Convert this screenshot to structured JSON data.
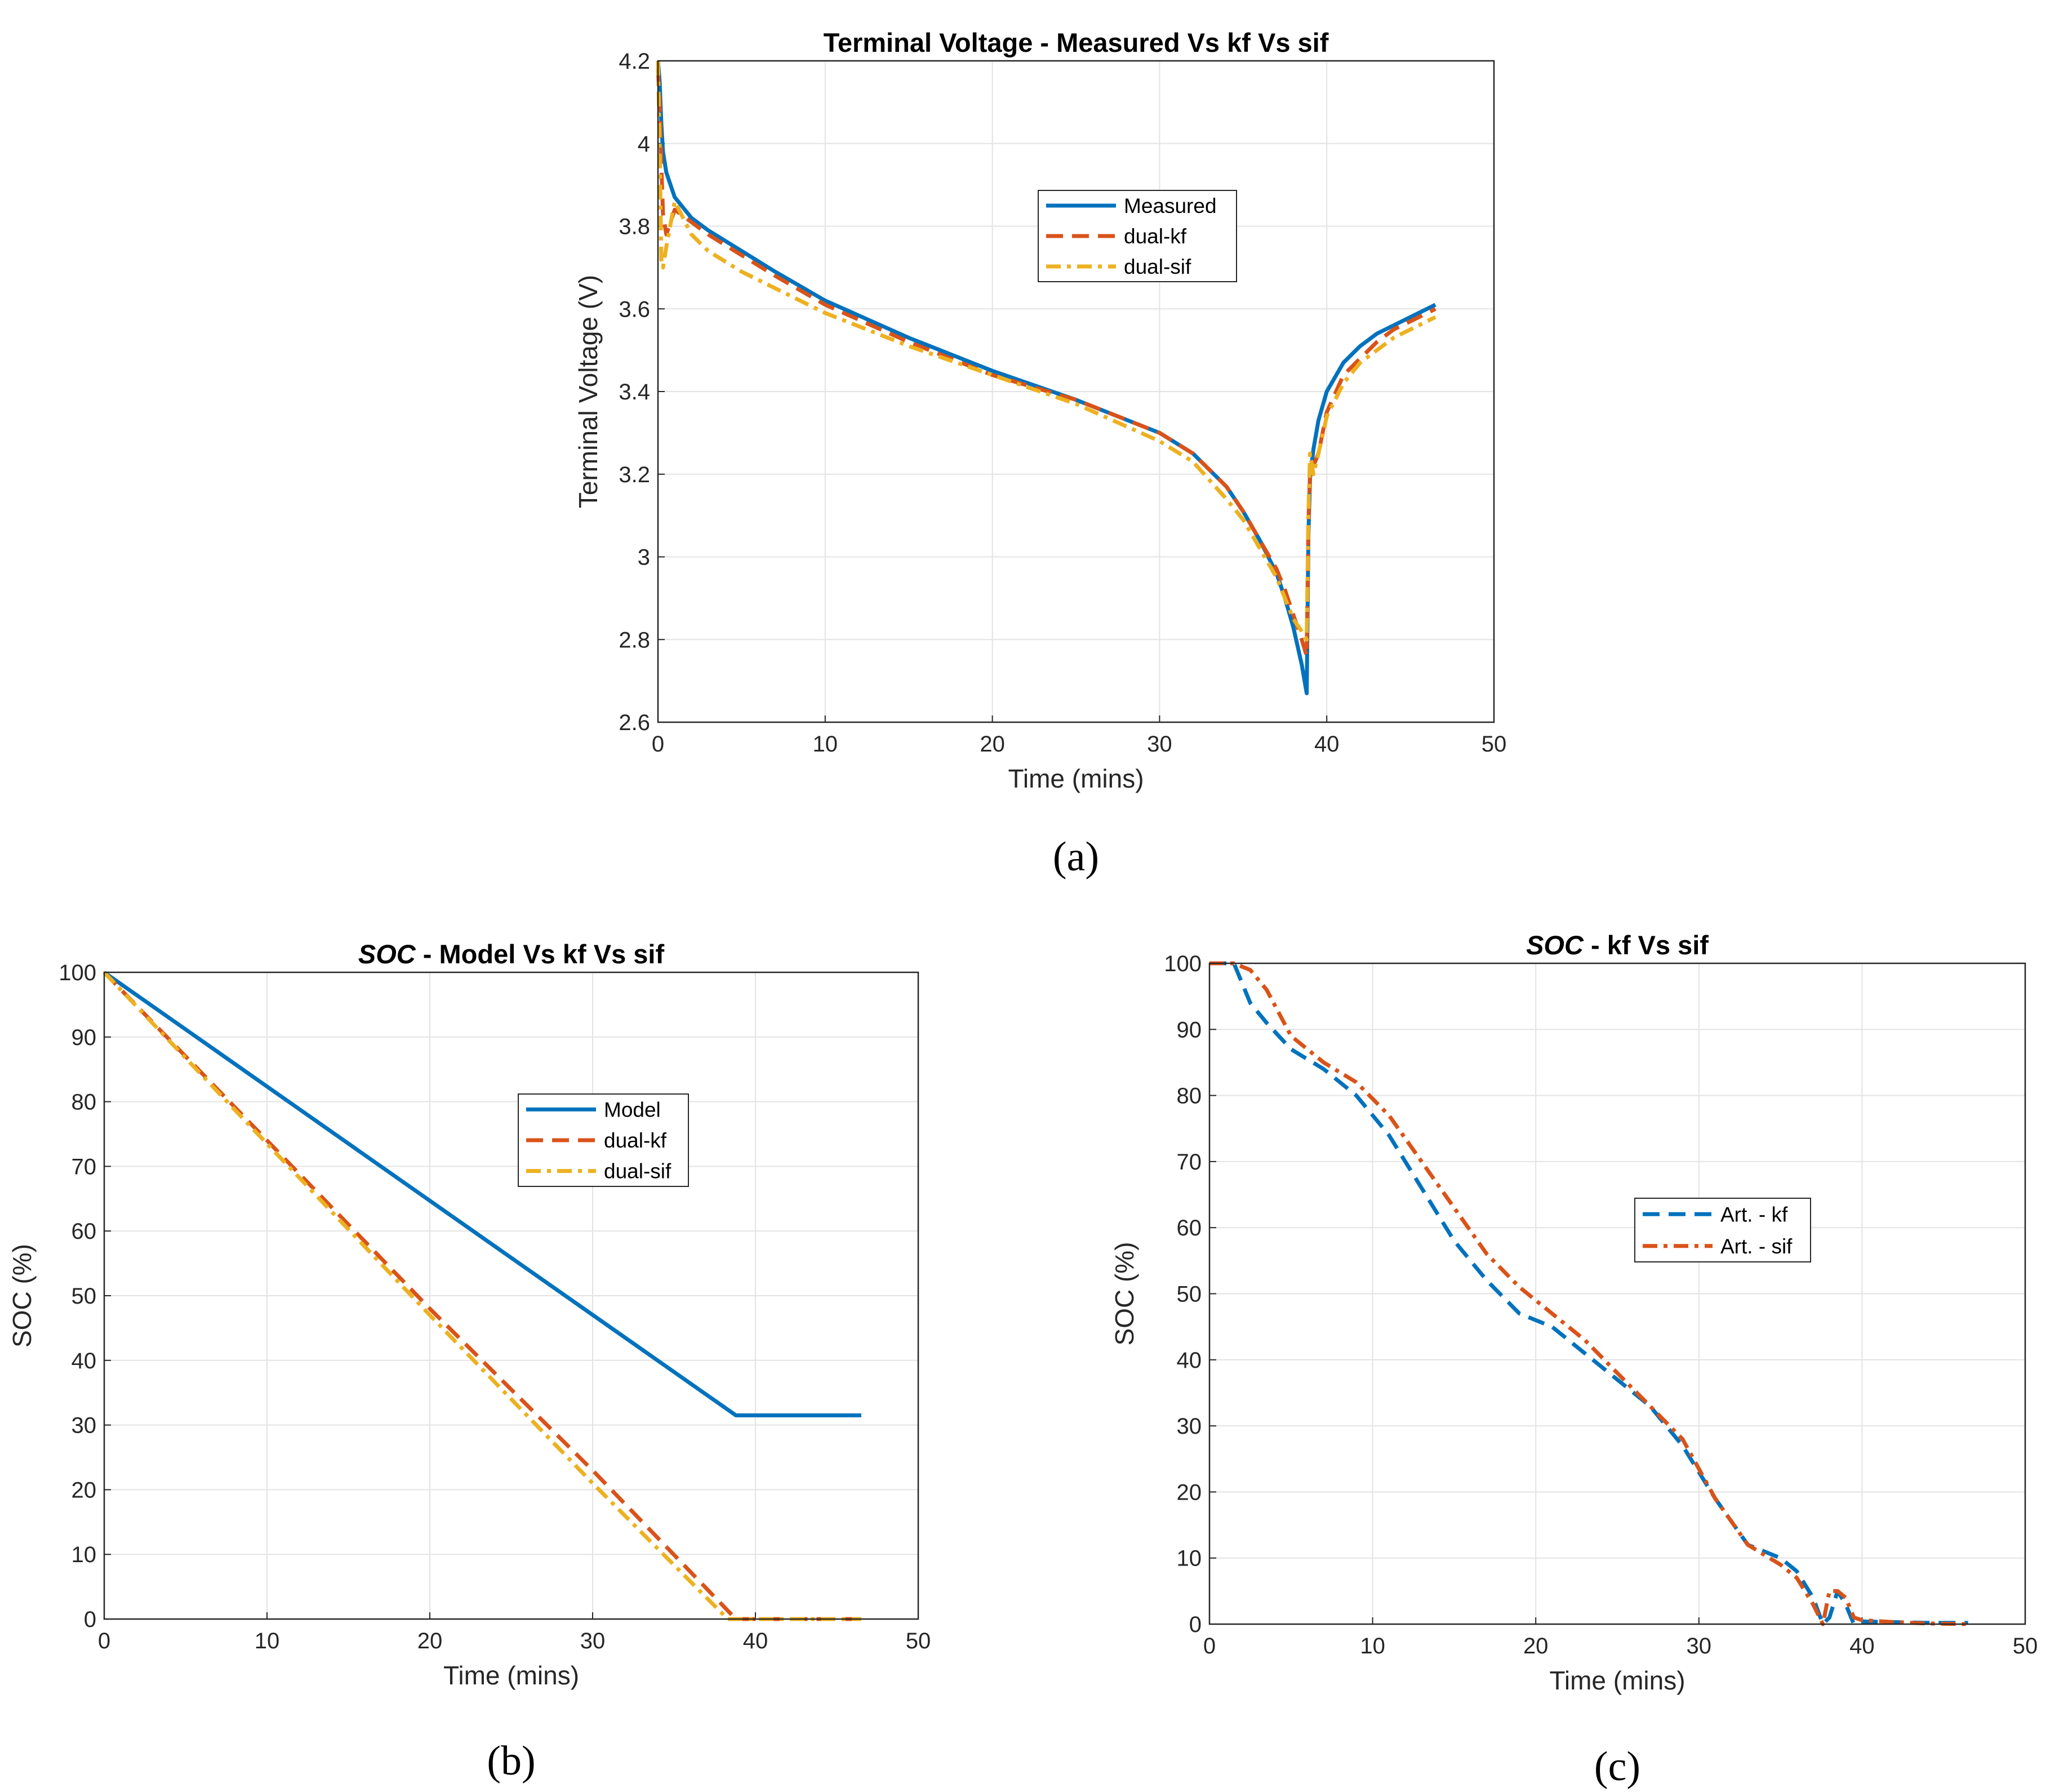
{
  "colors": {
    "blue": "#0072BD",
    "red": "#D95319",
    "yellow": "#EDB120"
  },
  "chart_data": [
    {
      "id": "a",
      "type": "line",
      "title": "Terminal Voltage - Measured Vs kf Vs sif",
      "title_italic_prefix": "",
      "xlabel": "Time (mins)",
      "ylabel": "Terminal Voltage (V)",
      "panel_label": "(a)",
      "xlim": [
        0,
        50
      ],
      "ylim": [
        2.6,
        4.2
      ],
      "xticks": [
        0,
        10,
        20,
        30,
        40,
        50
      ],
      "yticks": [
        2.6,
        2.8,
        3,
        3.2,
        3.4,
        3.6,
        3.8,
        4,
        4.2
      ],
      "ytick_labels": [
        "2.6",
        "2.8",
        "3",
        "3.2",
        "3.4",
        "3.6",
        "3.8",
        "4",
        "4.2"
      ],
      "grid": true,
      "legend_position": "upper-middle",
      "series": [
        {
          "name": "Measured",
          "color": "blue",
          "style": "solid",
          "x": [
            0,
            0.1,
            0.2,
            0.3,
            0.5,
            1,
            2,
            3,
            5,
            7,
            10,
            15,
            20,
            25,
            30,
            32,
            34,
            35,
            36,
            37,
            37.5,
            38,
            38.5,
            38.8,
            38.9,
            39.0,
            39.2,
            39.5,
            40,
            41,
            42,
            43,
            44,
            45,
            46.5
          ],
          "y": [
            4.2,
            4.15,
            4.05,
            3.98,
            3.93,
            3.87,
            3.82,
            3.79,
            3.74,
            3.69,
            3.62,
            3.53,
            3.45,
            3.38,
            3.3,
            3.25,
            3.17,
            3.11,
            3.04,
            2.96,
            2.9,
            2.83,
            2.74,
            2.67,
            3.05,
            3.19,
            3.26,
            3.33,
            3.4,
            3.47,
            3.51,
            3.54,
            3.56,
            3.58,
            3.61
          ]
        },
        {
          "name": "dual-kf",
          "color": "red",
          "style": "dashed",
          "x": [
            0,
            0.1,
            0.2,
            0.3,
            0.5,
            1,
            2,
            3,
            5,
            7,
            10,
            15,
            20,
            25,
            30,
            32,
            34,
            35,
            36,
            37,
            37.5,
            38,
            38.5,
            38.8,
            38.9,
            39.0,
            39.2,
            39.5,
            40,
            41,
            42,
            43,
            44,
            45,
            46.5
          ],
          "y": [
            4.18,
            4.1,
            3.95,
            3.83,
            3.78,
            3.84,
            3.81,
            3.78,
            3.73,
            3.68,
            3.61,
            3.52,
            3.44,
            3.38,
            3.3,
            3.25,
            3.17,
            3.11,
            3.04,
            2.97,
            2.92,
            2.86,
            2.8,
            2.76,
            3.08,
            3.2,
            3.22,
            3.25,
            3.35,
            3.44,
            3.48,
            3.52,
            3.55,
            3.57,
            3.6
          ]
        },
        {
          "name": "dual-sif",
          "color": "yellow",
          "style": "dashdot",
          "x": [
            0,
            0.1,
            0.2,
            0.3,
            0.5,
            1,
            2,
            3,
            5,
            7,
            10,
            15,
            20,
            25,
            30,
            32,
            34,
            35,
            36,
            37,
            37.5,
            38,
            38.5,
            38.8,
            38.9,
            39.0,
            39.2,
            39.5,
            40,
            41,
            42,
            43,
            44,
            45,
            46.5
          ],
          "y": [
            4.2,
            4.0,
            3.72,
            3.7,
            3.75,
            3.86,
            3.78,
            3.74,
            3.69,
            3.65,
            3.59,
            3.51,
            3.44,
            3.37,
            3.28,
            3.23,
            3.14,
            3.09,
            3.02,
            2.95,
            2.9,
            2.85,
            2.82,
            2.8,
            3.1,
            3.25,
            3.2,
            3.25,
            3.34,
            3.42,
            3.47,
            3.5,
            3.53,
            3.55,
            3.58
          ]
        }
      ]
    },
    {
      "id": "b",
      "type": "line",
      "title": " - Model Vs kf Vs sif",
      "title_italic_prefix": "SOC",
      "xlabel": "Time (mins)",
      "ylabel": "SOC (%)",
      "panel_label": "(b)",
      "xlim": [
        0,
        50
      ],
      "ylim": [
        0,
        100
      ],
      "xticks": [
        0,
        10,
        20,
        30,
        40,
        50
      ],
      "yticks": [
        0,
        10,
        20,
        30,
        40,
        50,
        60,
        70,
        80,
        90,
        100
      ],
      "ytick_labels": [
        "0",
        "10",
        "20",
        "30",
        "40",
        "50",
        "60",
        "70",
        "80",
        "90",
        "100"
      ],
      "grid": true,
      "legend_position": "upper-right",
      "series": [
        {
          "name": "Model",
          "color": "blue",
          "style": "solid",
          "x": [
            0,
            38.8,
            46.5
          ],
          "y": [
            100,
            31.5,
            31.5
          ]
        },
        {
          "name": "dual-kf",
          "color": "red",
          "style": "dashed",
          "x": [
            0,
            10,
            20,
            30,
            38.8,
            46.5
          ],
          "y": [
            100,
            74,
            48,
            23,
            0,
            0
          ]
        },
        {
          "name": "dual-sif",
          "color": "yellow",
          "style": "dashdot",
          "x": [
            0,
            10,
            20,
            30,
            38.3,
            46.5
          ],
          "y": [
            100,
            73.5,
            47,
            21,
            0,
            0
          ]
        }
      ]
    },
    {
      "id": "c",
      "type": "line",
      "title": " - kf Vs sif",
      "title_italic_prefix": "SOC",
      "xlabel": "Time (mins)",
      "ylabel": "SOC (%)",
      "panel_label": "(c)",
      "xlim": [
        0,
        50
      ],
      "ylim": [
        0,
        100
      ],
      "xticks": [
        0,
        10,
        20,
        30,
        40,
        50
      ],
      "yticks": [
        0,
        10,
        20,
        30,
        40,
        50,
        60,
        70,
        80,
        90,
        100
      ],
      "ytick_labels": [
        "0",
        "10",
        "20",
        "30",
        "40",
        "50",
        "60",
        "70",
        "80",
        "90",
        "100"
      ],
      "grid": true,
      "legend_position": "center-right",
      "series": [
        {
          "name": "Art. - kf",
          "color": "blue",
          "style": "dashed",
          "x": [
            0,
            1.5,
            2.5,
            3.5,
            5,
            7,
            9,
            11,
            13,
            15,
            17,
            19,
            21,
            23,
            25,
            27,
            29,
            31,
            33,
            35,
            36,
            37,
            37.6,
            38,
            38.5,
            39,
            39.5,
            40,
            42,
            44,
            46.5
          ],
          "y": [
            100,
            100,
            94,
            91,
            87,
            84,
            80,
            74,
            66,
            58,
            52,
            47,
            45,
            41,
            37,
            33,
            27,
            19,
            12,
            10,
            8,
            4,
            0,
            1,
            5,
            3,
            0,
            0.4,
            0.3,
            0.2,
            0.2
          ]
        },
        {
          "name": "Art. - sif",
          "color": "red",
          "style": "dashdot",
          "x": [
            0,
            1.5,
            2.5,
            3.5,
            5,
            7,
            9,
            11,
            13,
            15,
            17,
            19,
            21,
            23,
            25,
            27,
            29,
            31,
            33,
            35,
            36,
            37,
            37.6,
            38,
            38.5,
            39,
            39.5,
            40,
            42,
            44,
            46.5
          ],
          "y": [
            100,
            100,
            99,
            96,
            89,
            85,
            82,
            77,
            70,
            63,
            56,
            51,
            47,
            43,
            38,
            33,
            28,
            19,
            12,
            9,
            7,
            3,
            0,
            5,
            5,
            4,
            1,
            0.6,
            0.3,
            0.1,
            0
          ]
        }
      ]
    }
  ]
}
